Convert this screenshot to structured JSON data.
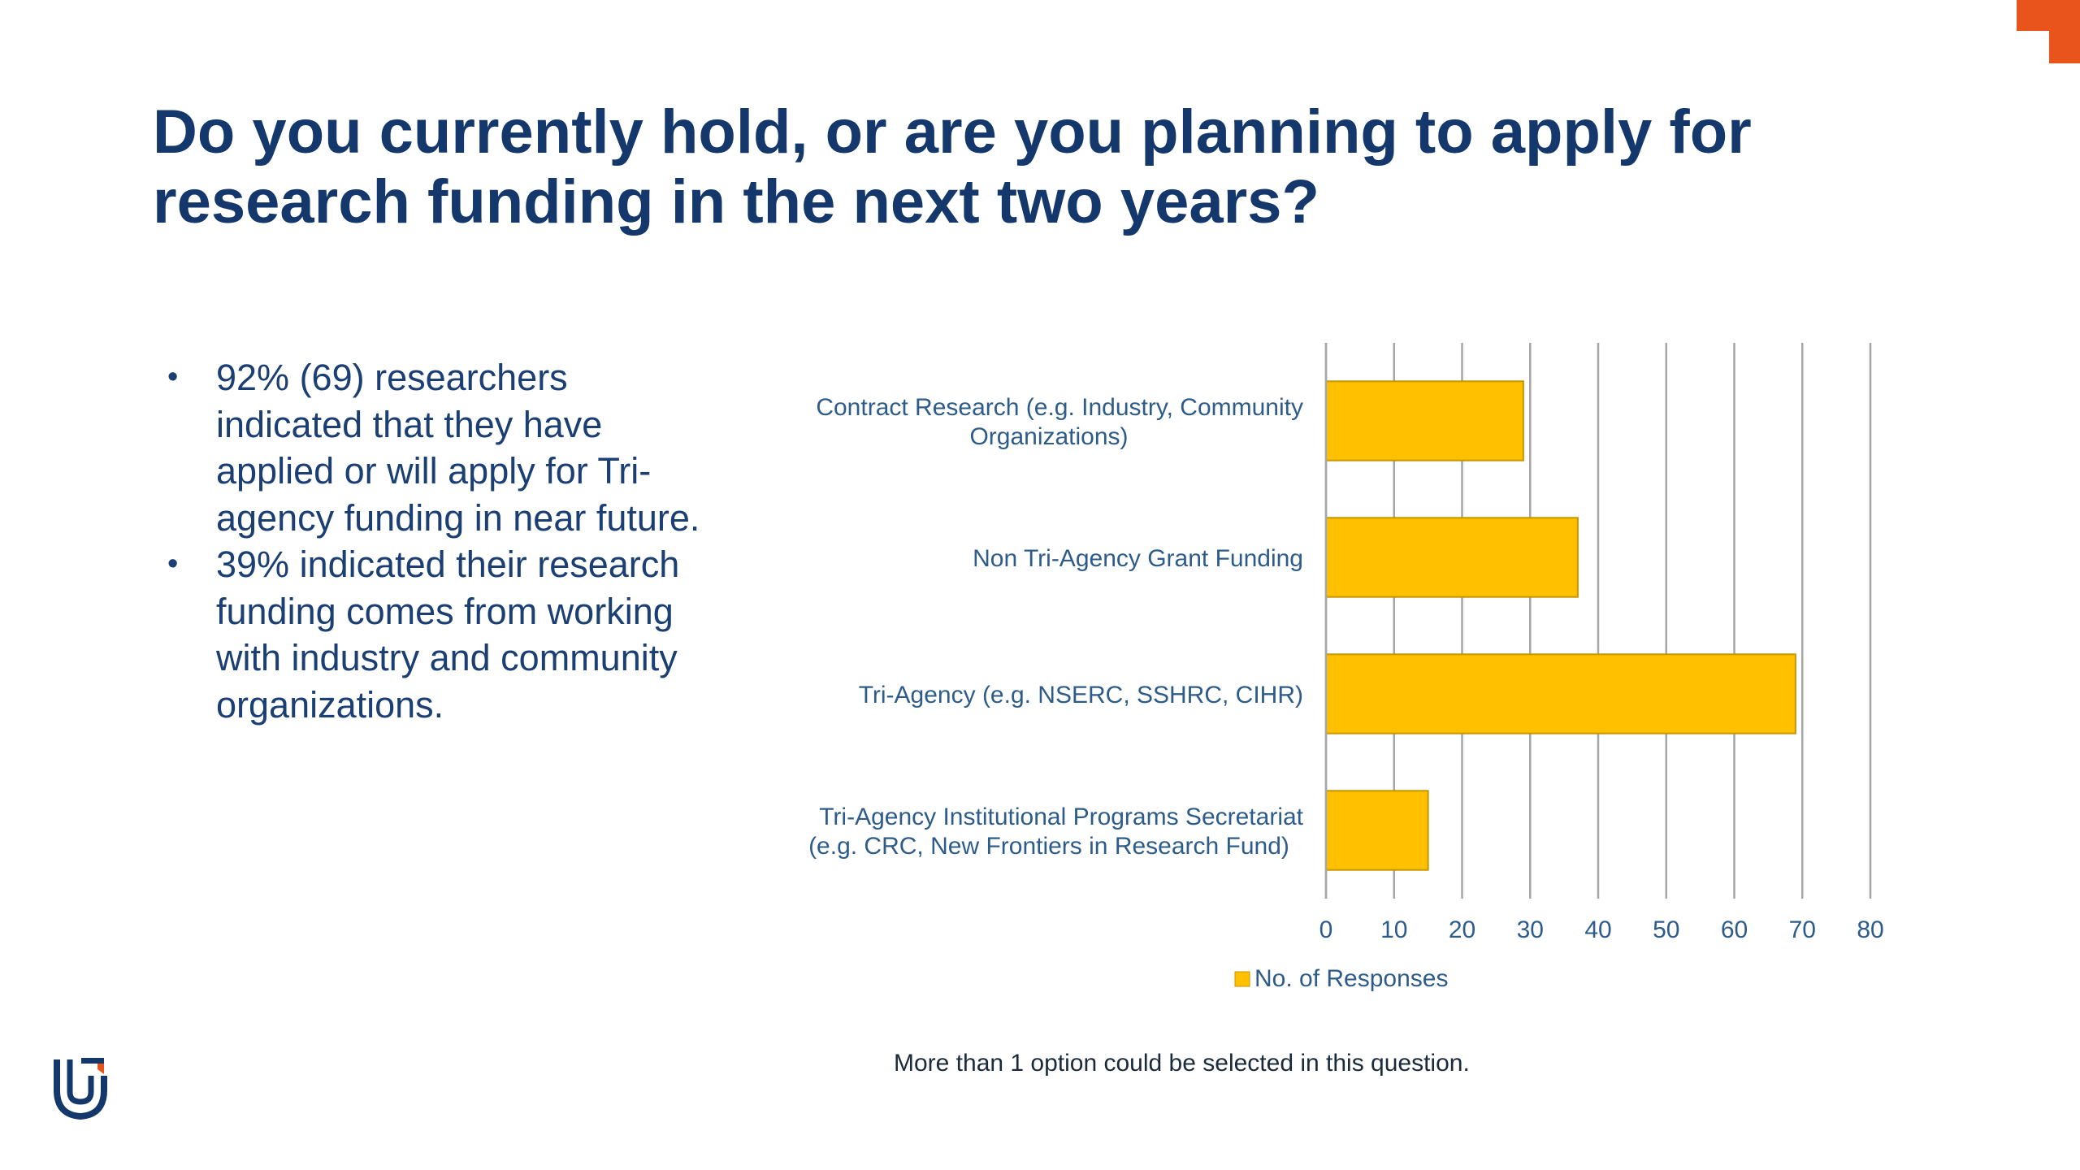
{
  "slide": {
    "title_line1": "Do you currently hold, or are you planning to apply for",
    "title_line2": "research funding in the next two years?",
    "bullets": [
      [
        "92% (69) researchers",
        "indicated that they have",
        "applied or will apply for Tri-",
        "agency funding in near future."
      ],
      [
        "39% indicated their research",
        "funding comes from working",
        "with industry and community",
        "organizations."
      ]
    ],
    "footnote": "More than 1 option could be selected in this question."
  },
  "colors": {
    "title": "#14386b",
    "bar_fill": "#ffc000",
    "bar_stroke": "#c89600",
    "axis_text": "#2e5c8a",
    "gridline": "#a6a6a6",
    "accent": "#e8541c"
  },
  "icons": {
    "corner": "corner-decoration-icon",
    "logo": "institution-logo-icon"
  },
  "chart_data": {
    "type": "bar",
    "orientation": "horizontal",
    "categories": [
      [
        "Contract Research (e.g. Industry, Community",
        "Organizations)"
      ],
      [
        "Non Tri-Agency Grant Funding"
      ],
      [
        "Tri-Agency (e.g. NSERC, SSHRC, CIHR)"
      ],
      [
        "Tri-Agency Institutional Programs Secretariat",
        "(e.g. CRC, New Frontiers in Research Fund)"
      ]
    ],
    "series": [
      {
        "name": "No. of Responses",
        "values": [
          29,
          37,
          69,
          15
        ]
      }
    ],
    "xlim": [
      0,
      80
    ],
    "xticks": [
      0,
      10,
      20,
      30,
      40,
      50,
      60,
      70,
      80
    ],
    "grid": true,
    "legend": "bottom"
  }
}
